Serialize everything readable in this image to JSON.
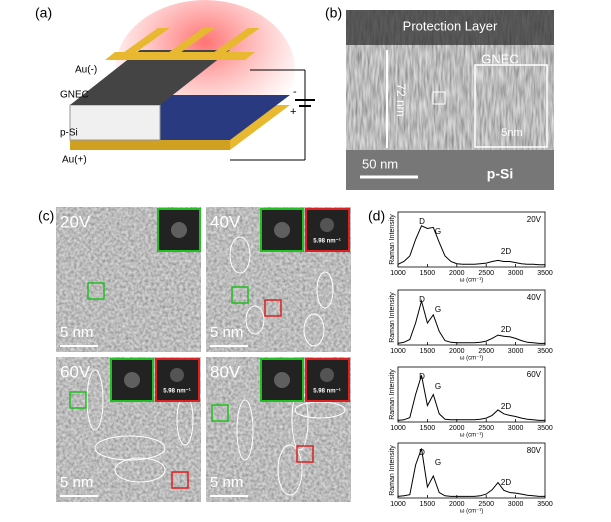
{
  "panels": {
    "a": {
      "label": "(a)",
      "texts": [
        "Au(-)",
        "GNEC",
        "p-Si",
        "Au(+)",
        "-",
        "+"
      ]
    },
    "b": {
      "label": "(b)",
      "texts": [
        "Protection Layer",
        "GNEC",
        "72 nm",
        "50 nm",
        "p-Si",
        "5nm"
      ]
    },
    "c": {
      "label": "(c)",
      "images": [
        {
          "voltage": "20V",
          "scale": "5 nm"
        },
        {
          "voltage": "40V",
          "scale": "5 nm",
          "inset": "5.98 nm⁻¹"
        },
        {
          "voltage": "60V",
          "scale": "5 nm",
          "inset": "5.98 nm⁻¹"
        },
        {
          "voltage": "80V",
          "scale": "5 nm",
          "inset": "5.98 nm⁻¹"
        }
      ]
    },
    "d": {
      "label": "(d)"
    }
  },
  "chart_data": [
    {
      "type": "line",
      "label": "20V",
      "x_label": "ω (cm⁻¹)",
      "y_label": "Raman Intensity",
      "peaks": [
        "D",
        "G",
        "2D"
      ],
      "color": "#000000",
      "x": [
        1000,
        1100,
        1200,
        1300,
        1400,
        1500,
        1600,
        1700,
        1800,
        1900,
        2000,
        2100,
        2200,
        2300,
        2400,
        2500,
        2600,
        2700,
        2800,
        2900,
        3000,
        3100,
        3200,
        3300,
        3400,
        3500
      ],
      "values": [
        0.05,
        0.1,
        0.2,
        0.5,
        0.75,
        0.7,
        0.72,
        0.45,
        0.2,
        0.1,
        0.06,
        0.05,
        0.05,
        0.05,
        0.06,
        0.07,
        0.1,
        0.12,
        0.1,
        0.1,
        0.08,
        0.06,
        0.05,
        0.05,
        0.04,
        0.04
      ],
      "xlim": [
        1000,
        3500
      ],
      "xticks": [
        1000,
        1500,
        2000,
        2500,
        3000,
        3500
      ],
      "ylim": [
        0,
        1
      ]
    },
    {
      "type": "line",
      "label": "40V",
      "x_label": "ω (cm⁻¹)",
      "y_label": "Raman Intensity",
      "peaks": [
        "D",
        "G",
        "2D"
      ],
      "color": "#000000",
      "x": [
        1000,
        1100,
        1200,
        1300,
        1400,
        1500,
        1600,
        1700,
        1800,
        1900,
        2000,
        2100,
        2200,
        2300,
        2400,
        2500,
        2600,
        2700,
        2800,
        2900,
        3000,
        3100,
        3200,
        3300,
        3400,
        3500
      ],
      "values": [
        0.03,
        0.05,
        0.1,
        0.4,
        0.8,
        0.4,
        0.55,
        0.25,
        0.08,
        0.05,
        0.04,
        0.04,
        0.04,
        0.04,
        0.05,
        0.07,
        0.12,
        0.18,
        0.16,
        0.15,
        0.12,
        0.08,
        0.05,
        0.04,
        0.03,
        0.03
      ],
      "xlim": [
        1000,
        3500
      ],
      "xticks": [
        1000,
        1500,
        2000,
        2500,
        3000,
        3500
      ],
      "ylim": [
        0,
        1
      ]
    },
    {
      "type": "line",
      "label": "60V",
      "x_label": "ω (cm⁻¹)",
      "y_label": "Raman Intensity",
      "peaks": [
        "D",
        "G",
        "2D"
      ],
      "color": "#000000",
      "x": [
        1000,
        1100,
        1200,
        1300,
        1400,
        1500,
        1600,
        1700,
        1800,
        1900,
        2000,
        2100,
        2200,
        2300,
        2400,
        2500,
        2600,
        2700,
        2800,
        2900,
        3000,
        3100,
        3200,
        3300,
        3400,
        3500
      ],
      "values": [
        0.03,
        0.04,
        0.08,
        0.5,
        0.85,
        0.3,
        0.5,
        0.15,
        0.05,
        0.04,
        0.04,
        0.04,
        0.04,
        0.04,
        0.05,
        0.07,
        0.12,
        0.22,
        0.15,
        0.12,
        0.1,
        0.07,
        0.05,
        0.04,
        0.03,
        0.03
      ],
      "xlim": [
        1000,
        3500
      ],
      "xticks": [
        1000,
        1500,
        2000,
        2500,
        3000,
        3500
      ],
      "ylim": [
        0,
        1
      ]
    },
    {
      "type": "line",
      "label": "80V",
      "x_label": "ω (cm⁻¹)",
      "y_label": "Raman Intensity",
      "peaks": [
        "D",
        "G",
        "2D"
      ],
      "color": "#000000",
      "x": [
        1000,
        1100,
        1200,
        1300,
        1400,
        1500,
        1600,
        1700,
        1800,
        1900,
        2000,
        2100,
        2200,
        2300,
        2400,
        2500,
        2600,
        2700,
        2800,
        2900,
        3000,
        3100,
        3200,
        3300,
        3400,
        3500
      ],
      "values": [
        0.03,
        0.04,
        0.06,
        0.6,
        0.9,
        0.2,
        0.4,
        0.1,
        0.04,
        0.03,
        0.03,
        0.03,
        0.03,
        0.03,
        0.04,
        0.07,
        0.15,
        0.28,
        0.14,
        0.1,
        0.09,
        0.07,
        0.05,
        0.04,
        0.03,
        0.03
      ],
      "xlim": [
        1000,
        3500
      ],
      "xticks": [
        1000,
        1500,
        2000,
        2500,
        3000,
        3500
      ],
      "ylim": [
        0,
        1
      ]
    }
  ]
}
